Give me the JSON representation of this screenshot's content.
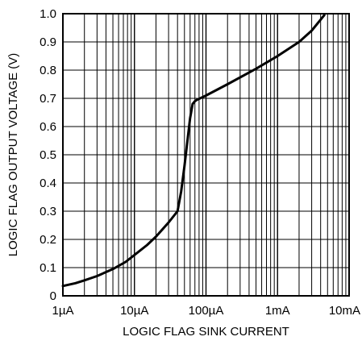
{
  "chart_data": {
    "type": "line",
    "xlabel": "LOGIC FLAG SINK CURRENT",
    "ylabel": "LOGIC FLAG OUTPUT VOLTAGE (V)",
    "xscale": "log",
    "xlim": [
      1e-06,
      0.01
    ],
    "ylim": [
      0,
      1.0
    ],
    "grid": true,
    "x_ticks": [
      {
        "value": 1e-06,
        "label": "1µA"
      },
      {
        "value": 1e-05,
        "label": "10µA"
      },
      {
        "value": 0.0001,
        "label": "100µA"
      },
      {
        "value": 0.001,
        "label": "1mA"
      },
      {
        "value": 0.01,
        "label": "10mA"
      }
    ],
    "y_ticks": [
      {
        "value": 0,
        "label": "0"
      },
      {
        "value": 0.1,
        "label": "0.1"
      },
      {
        "value": 0.2,
        "label": "0.2"
      },
      {
        "value": 0.3,
        "label": "0.3"
      },
      {
        "value": 0.4,
        "label": "0.4"
      },
      {
        "value": 0.5,
        "label": "0.5"
      },
      {
        "value": 0.6,
        "label": "0.6"
      },
      {
        "value": 0.7,
        "label": "0.7"
      },
      {
        "value": 0.8,
        "label": "0.8"
      },
      {
        "value": 0.9,
        "label": "0.9"
      },
      {
        "value": 1.0,
        "label": "1.0"
      }
    ],
    "series": [
      {
        "color": "#000000",
        "x": [
          1e-06,
          1.5e-06,
          2e-06,
          3e-06,
          5e-06,
          7.5e-06,
          1e-05,
          1.5e-05,
          2e-05,
          3e-05,
          4e-05,
          4.5e-05,
          5e-05,
          5.5e-05,
          6e-05,
          6.5e-05,
          7e-05,
          7.5e-05,
          0.0001,
          0.0002,
          0.0005,
          0.001,
          0.002,
          0.003,
          0.0045
        ],
        "y": [
          0.035,
          0.045,
          0.055,
          0.07,
          0.095,
          0.12,
          0.145,
          0.18,
          0.21,
          0.26,
          0.3,
          0.37,
          0.46,
          0.55,
          0.63,
          0.68,
          0.69,
          0.695,
          0.71,
          0.75,
          0.805,
          0.85,
          0.9,
          0.94,
          0.995
        ]
      }
    ]
  }
}
